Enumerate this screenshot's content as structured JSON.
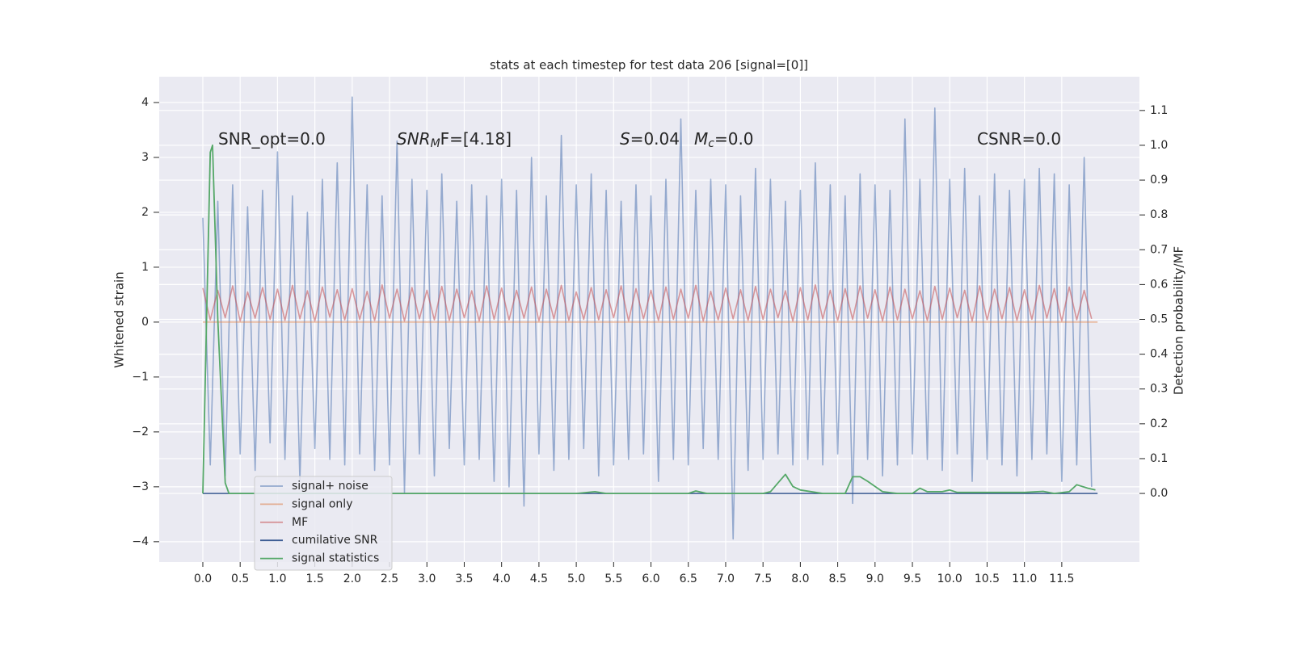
{
  "chart_data": {
    "type": "line",
    "title": "stats at each timestep for test data 206 [signal=[0]]",
    "ylabel": "Whitened strain",
    "y2label": "Detection probability/MF",
    "xlim": [
      -0.584,
      12.54
    ],
    "ylim": [
      -4.37,
      4.47
    ],
    "y2lim": [
      -0.197,
      1.197
    ],
    "grid": true,
    "legend": "lower left",
    "xticks": [
      {
        "value": 0,
        "label": "0.0"
      },
      {
        "value": 0.5,
        "label": "0.5"
      },
      {
        "value": 1,
        "label": "1.0"
      },
      {
        "value": 1.5,
        "label": "1.5"
      },
      {
        "value": 2,
        "label": "2.0"
      },
      {
        "value": 2.5,
        "label": "2.5"
      },
      {
        "value": 3,
        "label": "3.0"
      },
      {
        "value": 3.5,
        "label": "3.5"
      },
      {
        "value": 4,
        "label": "4.0"
      },
      {
        "value": 4.5,
        "label": "4.5"
      },
      {
        "value": 5,
        "label": "5.0"
      },
      {
        "value": 5.5,
        "label": "5.5"
      },
      {
        "value": 6,
        "label": "6.0"
      },
      {
        "value": 6.5,
        "label": "6.5"
      },
      {
        "value": 7,
        "label": "7.0"
      },
      {
        "value": 7.5,
        "label": "7.5"
      },
      {
        "value": 8,
        "label": "8.0"
      },
      {
        "value": 8.5,
        "label": "8.5"
      },
      {
        "value": 9,
        "label": "9.0"
      },
      {
        "value": 9.5,
        "label": "9.5"
      },
      {
        "value": 10,
        "label": "10.0"
      },
      {
        "value": 10.5,
        "label": "10.5"
      },
      {
        "value": 11,
        "label": "11.0"
      },
      {
        "value": 11.5,
        "label": "11.5"
      }
    ],
    "yticks": [
      {
        "value": -4,
        "label": "−4"
      },
      {
        "value": -3,
        "label": "−3"
      },
      {
        "value": -2,
        "label": "−2"
      },
      {
        "value": -1,
        "label": "−1"
      },
      0,
      1,
      2,
      3,
      4
    ],
    "y2ticks": [
      {
        "value": 0,
        "label": "0.0"
      },
      {
        "value": 0.1,
        "label": "0.1"
      },
      {
        "value": 0.2,
        "label": "0.2"
      },
      {
        "value": 0.3,
        "label": "0.3"
      },
      {
        "value": 0.4,
        "label": "0.4"
      },
      {
        "value": 0.5,
        "label": "0.5"
      },
      {
        "value": 0.6,
        "label": "0.6"
      },
      {
        "value": 0.7,
        "label": "0.7"
      },
      {
        "value": 0.8,
        "label": "0.8"
      },
      {
        "value": 0.9,
        "label": "0.9"
      },
      {
        "value": 1,
        "label": "1.0"
      },
      {
        "value": 1.1,
        "label": "1.1"
      }
    ],
    "x": [
      0.0,
      0.1,
      0.2,
      0.3,
      0.4,
      0.5,
      0.6,
      0.7,
      0.8,
      0.9,
      1.0,
      1.1,
      1.2,
      1.3,
      1.4,
      1.5,
      1.6,
      1.7,
      1.8,
      1.9,
      2.0,
      2.1,
      2.2,
      2.3,
      2.4,
      2.5,
      2.6,
      2.7,
      2.8,
      2.9,
      3.0,
      3.1,
      3.2,
      3.3,
      3.4,
      3.5,
      3.6,
      3.7,
      3.8,
      3.9,
      4.0,
      4.1,
      4.2,
      4.3,
      4.4,
      4.5,
      4.6,
      4.7,
      4.8,
      4.9,
      5.0,
      5.1,
      5.2,
      5.3,
      5.4,
      5.5,
      5.6,
      5.7,
      5.8,
      5.9,
      6.0,
      6.1,
      6.2,
      6.3,
      6.4,
      6.5,
      6.6,
      6.7,
      6.8,
      6.9,
      7.0,
      7.1,
      7.2,
      7.3,
      7.4,
      7.5,
      7.6,
      7.7,
      7.8,
      7.9,
      8.0,
      8.1,
      8.2,
      8.3,
      8.4,
      8.5,
      8.6,
      8.7,
      8.8,
      8.9,
      9.0,
      9.1,
      9.2,
      9.3,
      9.4,
      9.5,
      9.6,
      9.7,
      9.8,
      9.9,
      10.0,
      10.1,
      10.2,
      10.3,
      10.4,
      10.5,
      10.6,
      10.7,
      10.8,
      10.9,
      11.0,
      11.1,
      11.2,
      11.3,
      11.4,
      11.5,
      11.6,
      11.7,
      11.8,
      11.9
    ],
    "series": [
      {
        "name": "signal+ noise",
        "color": "#4c72b0",
        "values": [
          1.9,
          -2.6,
          2.2,
          -2.8,
          2.5,
          -2.4,
          2.1,
          -2.7,
          2.4,
          -2.2,
          3.1,
          -2.5,
          2.3,
          -2.9,
          2.0,
          -2.3,
          2.6,
          -2.5,
          2.9,
          -2.6,
          4.1,
          -2.4,
          2.5,
          -2.7,
          2.3,
          -2.6,
          3.3,
          -3.1,
          2.6,
          -2.4,
          2.4,
          -2.8,
          2.7,
          -2.3,
          2.2,
          -2.6,
          2.5,
          -2.5,
          2.3,
          -2.9,
          2.6,
          -3.0,
          2.4,
          -3.35,
          3.0,
          -2.4,
          2.3,
          -2.7,
          3.4,
          -2.5,
          2.5,
          -2.3,
          2.7,
          -2.8,
          2.4,
          -2.6,
          2.2,
          -2.5,
          2.5,
          -2.4,
          2.3,
          -2.9,
          2.6,
          -2.5,
          3.7,
          -2.6,
          2.4,
          -2.3,
          2.6,
          -2.5,
          2.5,
          -3.95,
          2.3,
          -2.7,
          2.8,
          -2.5,
          2.6,
          -2.4,
          2.2,
          -2.6,
          2.4,
          -2.5,
          2.9,
          -2.6,
          2.5,
          -2.4,
          2.3,
          -3.3,
          2.7,
          -2.5,
          2.5,
          -2.8,
          2.4,
          -2.6,
          3.7,
          -2.4,
          2.6,
          -2.5,
          3.9,
          -2.7,
          2.6,
          -2.4,
          2.8,
          -2.9,
          2.3,
          -2.5,
          2.7,
          -2.6,
          2.4,
          -2.8,
          2.6,
          -2.5,
          2.8,
          -2.4,
          2.7,
          -2.9,
          2.5,
          -2.6,
          3.0,
          -3.0
        ]
      },
      {
        "name": "signal only",
        "color": "#dd8452",
        "x": [
          0.0,
          11.98
        ],
        "values": [
          0,
          0
        ]
      },
      {
        "name": "MF",
        "color": "#c44e52",
        "values": [
          0.62,
          0.04,
          0.58,
          0.08,
          0.66,
          0.02,
          0.55,
          0.07,
          0.63,
          0.05,
          0.6,
          0.03,
          0.67,
          0.06,
          0.57,
          0.02,
          0.64,
          0.09,
          0.59,
          0.04,
          0.61,
          0.05,
          0.56,
          0.03,
          0.68,
          0.07,
          0.6,
          0.02,
          0.63,
          0.06,
          0.58,
          0.04,
          0.65,
          0.03,
          0.6,
          0.08,
          0.57,
          0.02,
          0.66,
          0.05,
          0.62,
          0.04,
          0.58,
          0.07,
          0.64,
          0.02,
          0.6,
          0.06,
          0.67,
          0.03,
          0.55,
          0.05,
          0.63,
          0.04,
          0.59,
          0.08,
          0.66,
          0.02,
          0.61,
          0.06,
          0.58,
          0.03,
          0.64,
          0.05,
          0.6,
          0.07,
          0.67,
          0.02,
          0.56,
          0.04,
          0.62,
          0.06,
          0.59,
          0.03,
          0.65,
          0.05,
          0.6,
          0.08,
          0.57,
          0.02,
          0.63,
          0.04,
          0.68,
          0.06,
          0.58,
          0.03,
          0.61,
          0.05,
          0.66,
          0.07,
          0.59,
          0.02,
          0.64,
          0.04,
          0.6,
          0.06,
          0.57,
          0.03,
          0.65,
          0.05,
          0.62,
          0.08,
          0.58,
          0.02,
          0.66,
          0.04,
          0.6,
          0.06,
          0.63,
          0.03,
          0.59,
          0.05,
          0.67,
          0.07,
          0.61,
          0.02,
          0.64,
          0.04,
          0.58,
          0.06
        ]
      },
      {
        "name": "cumilative SNR",
        "color": "#3b5b92",
        "axis": "y2",
        "x": [
          0.0,
          11.98
        ],
        "values": [
          0,
          0
        ]
      },
      {
        "name": "signal statistics",
        "color": "#55a868",
        "axis": "y2",
        "x": [
          0.0,
          0.05,
          0.1,
          0.13,
          0.2,
          0.3,
          0.35,
          1.0,
          2.0,
          3.0,
          4.0,
          5.0,
          5.25,
          5.4,
          6.0,
          6.5,
          6.6,
          6.75,
          7.0,
          7.5,
          7.6,
          7.7,
          7.8,
          7.9,
          8.0,
          8.3,
          8.6,
          8.7,
          8.8,
          8.9,
          9.1,
          9.3,
          9.5,
          9.6,
          9.7,
          9.9,
          10.0,
          10.1,
          10.5,
          11.0,
          11.25,
          11.4,
          11.6,
          11.7,
          11.85,
          11.95
        ],
        "values": [
          0.0,
          0.5,
          0.98,
          1.0,
          0.5,
          0.03,
          0.0,
          0.0,
          0.0,
          0.0,
          0.0,
          0.0,
          0.005,
          0.0,
          0.0,
          0.0,
          0.007,
          0.0,
          0.0,
          0.0,
          0.005,
          0.03,
          0.055,
          0.02,
          0.01,
          0.0,
          0.0,
          0.048,
          0.048,
          0.035,
          0.005,
          0.0,
          0.0,
          0.015,
          0.005,
          0.005,
          0.01,
          0.003,
          0.003,
          0.003,
          0.006,
          0.0,
          0.005,
          0.025,
          0.015,
          0.01
        ]
      }
    ],
    "annotations": [
      {
        "parts": [
          "SNR_opt=0.0"
        ]
      },
      {
        "parts": [
          "SNR",
          "M",
          "F=[4.18]"
        ]
      },
      {
        "parts": [
          "S",
          "=0.04"
        ]
      },
      {
        "parts": [
          "M",
          "c",
          "=0.0"
        ]
      },
      {
        "parts": [
          "CSNR=0.0"
        ]
      }
    ]
  }
}
